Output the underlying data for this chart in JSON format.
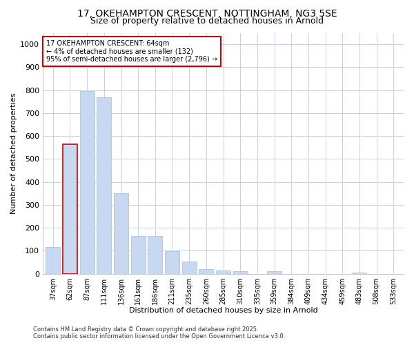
{
  "title_line1": "17, OKEHAMPTON CRESCENT, NOTTINGHAM, NG3 5SE",
  "title_line2": "Size of property relative to detached houses in Arnold",
  "categories": [
    "37sqm",
    "62sqm",
    "87sqm",
    "111sqm",
    "136sqm",
    "161sqm",
    "186sqm",
    "211sqm",
    "235sqm",
    "260sqm",
    "285sqm",
    "310sqm",
    "335sqm",
    "359sqm",
    "384sqm",
    "409sqm",
    "434sqm",
    "459sqm",
    "483sqm",
    "508sqm",
    "533sqm"
  ],
  "values": [
    115,
    565,
    795,
    770,
    350,
    165,
    165,
    98,
    52,
    20,
    15,
    10,
    0,
    10,
    0,
    0,
    0,
    0,
    5,
    0,
    0
  ],
  "highlight_index": 1,
  "bar_color": "#c8d8f0",
  "bar_edge_color": "#a0bedd",
  "highlight_edge_color": "#cc0000",
  "annotation_box_text": "17 OKEHAMPTON CRESCENT: 64sqm\n← 4% of detached houses are smaller (132)\n95% of semi-detached houses are larger (2,796) →",
  "annotation_box_edge_color": "#cc0000",
  "xlabel": "Distribution of detached houses by size in Arnold",
  "ylabel": "Number of detached properties",
  "ylim": [
    0,
    1050
  ],
  "yticks": [
    0,
    100,
    200,
    300,
    400,
    500,
    600,
    700,
    800,
    900,
    1000
  ],
  "background_color": "#ffffff",
  "plot_bg_color": "#ffffff",
  "grid_color": "#c8d0e8",
  "footer_line1": "Contains HM Land Registry data © Crown copyright and database right 2025.",
  "footer_line2": "Contains public sector information licensed under the Open Government Licence v3.0.",
  "title_fontsize": 10,
  "subtitle_fontsize": 9,
  "label_fontsize": 8,
  "tick_fontsize": 7,
  "annotation_fontsize": 7,
  "footer_fontsize": 6
}
